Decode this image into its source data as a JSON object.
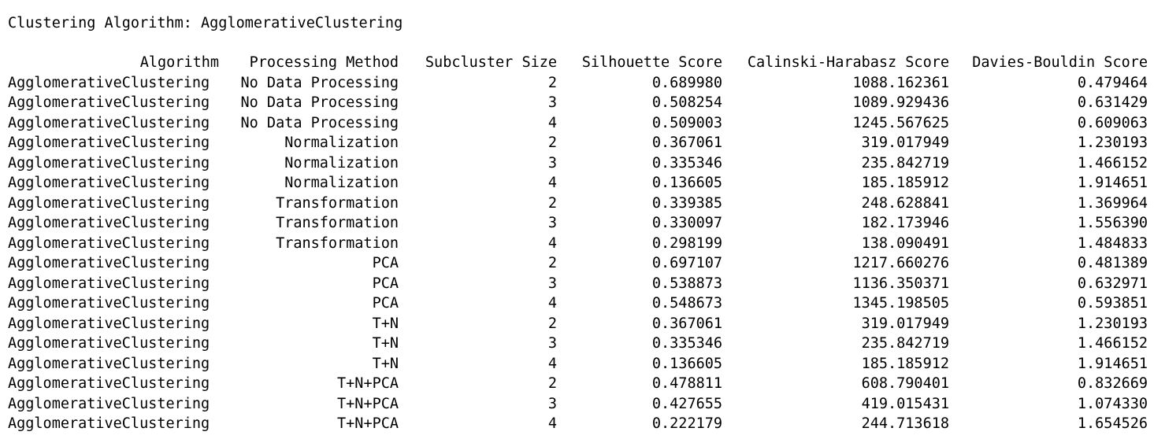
{
  "output": {
    "title": "Clustering Algorithm: AgglomerativeClustering"
  },
  "table": {
    "columns": [
      "Algorithm",
      "Processing Method",
      "Subcluster Size",
      "Silhouette Score",
      "Calinski-Harabasz Score",
      "Davies-Bouldin Score"
    ],
    "rows": [
      [
        "AgglomerativeClustering",
        "No Data Processing",
        "2",
        "0.689980",
        "1088.162361",
        "0.479464"
      ],
      [
        "AgglomerativeClustering",
        "No Data Processing",
        "3",
        "0.508254",
        "1089.929436",
        "0.631429"
      ],
      [
        "AgglomerativeClustering",
        "No Data Processing",
        "4",
        "0.509003",
        "1245.567625",
        "0.609063"
      ],
      [
        "AgglomerativeClustering",
        "Normalization",
        "2",
        "0.367061",
        "319.017949",
        "1.230193"
      ],
      [
        "AgglomerativeClustering",
        "Normalization",
        "3",
        "0.335346",
        "235.842719",
        "1.466152"
      ],
      [
        "AgglomerativeClustering",
        "Normalization",
        "4",
        "0.136605",
        "185.185912",
        "1.914651"
      ],
      [
        "AgglomerativeClustering",
        "Transformation",
        "2",
        "0.339385",
        "248.628841",
        "1.369964"
      ],
      [
        "AgglomerativeClustering",
        "Transformation",
        "3",
        "0.330097",
        "182.173946",
        "1.556390"
      ],
      [
        "AgglomerativeClustering",
        "Transformation",
        "4",
        "0.298199",
        "138.090491",
        "1.484833"
      ],
      [
        "AgglomerativeClustering",
        "PCA",
        "2",
        "0.697107",
        "1217.660276",
        "0.481389"
      ],
      [
        "AgglomerativeClustering",
        "PCA",
        "3",
        "0.538873",
        "1136.350371",
        "0.632971"
      ],
      [
        "AgglomerativeClustering",
        "PCA",
        "4",
        "0.548673",
        "1345.198505",
        "0.593851"
      ],
      [
        "AgglomerativeClustering",
        "T+N",
        "2",
        "0.367061",
        "319.017949",
        "1.230193"
      ],
      [
        "AgglomerativeClustering",
        "T+N",
        "3",
        "0.335346",
        "235.842719",
        "1.466152"
      ],
      [
        "AgglomerativeClustering",
        "T+N",
        "4",
        "0.136605",
        "185.185912",
        "1.914651"
      ],
      [
        "AgglomerativeClustering",
        "T+N+PCA",
        "2",
        "0.478811",
        "608.790401",
        "0.832669"
      ],
      [
        "AgglomerativeClustering",
        "T+N+PCA",
        "3",
        "0.427655",
        "419.015431",
        "1.074330"
      ],
      [
        "AgglomerativeClustering",
        "T+N+PCA",
        "4",
        "0.222179",
        "244.713618",
        "1.654526"
      ]
    ]
  }
}
